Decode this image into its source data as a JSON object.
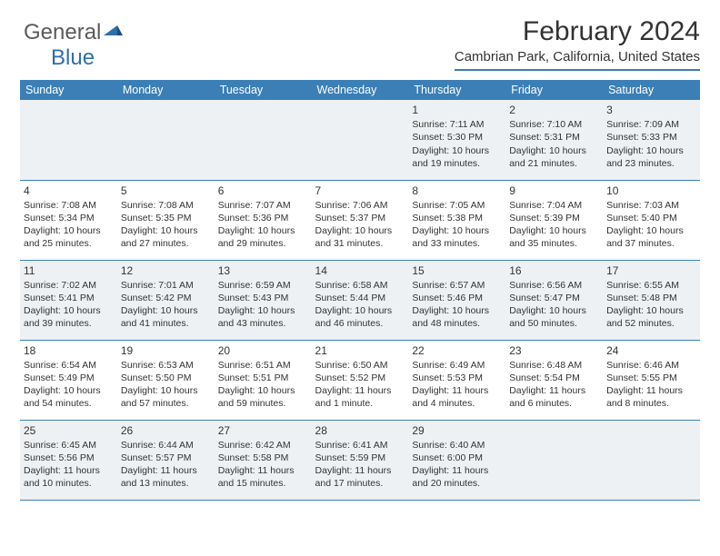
{
  "logo": {
    "word1": "General",
    "word2": "Blue"
  },
  "title": "February 2024",
  "location": "Cambrian Park, California, United States",
  "colors": {
    "accent": "#3b7fb6",
    "header_bg": "#3b7fb6",
    "header_text": "#ffffff",
    "shade_bg": "#eef1f3",
    "text": "#333333"
  },
  "weekdays": [
    "Sunday",
    "Monday",
    "Tuesday",
    "Wednesday",
    "Thursday",
    "Friday",
    "Saturday"
  ],
  "weeks": [
    [
      {
        "day": "",
        "lines": []
      },
      {
        "day": "",
        "lines": []
      },
      {
        "day": "",
        "lines": []
      },
      {
        "day": "",
        "lines": []
      },
      {
        "day": "1",
        "lines": [
          "Sunrise: 7:11 AM",
          "Sunset: 5:30 PM",
          "Daylight: 10 hours and 19 minutes."
        ]
      },
      {
        "day": "2",
        "lines": [
          "Sunrise: 7:10 AM",
          "Sunset: 5:31 PM",
          "Daylight: 10 hours and 21 minutes."
        ]
      },
      {
        "day": "3",
        "lines": [
          "Sunrise: 7:09 AM",
          "Sunset: 5:33 PM",
          "Daylight: 10 hours and 23 minutes."
        ]
      }
    ],
    [
      {
        "day": "4",
        "lines": [
          "Sunrise: 7:08 AM",
          "Sunset: 5:34 PM",
          "Daylight: 10 hours and 25 minutes."
        ]
      },
      {
        "day": "5",
        "lines": [
          "Sunrise: 7:08 AM",
          "Sunset: 5:35 PM",
          "Daylight: 10 hours and 27 minutes."
        ]
      },
      {
        "day": "6",
        "lines": [
          "Sunrise: 7:07 AM",
          "Sunset: 5:36 PM",
          "Daylight: 10 hours and 29 minutes."
        ]
      },
      {
        "day": "7",
        "lines": [
          "Sunrise: 7:06 AM",
          "Sunset: 5:37 PM",
          "Daylight: 10 hours and 31 minutes."
        ]
      },
      {
        "day": "8",
        "lines": [
          "Sunrise: 7:05 AM",
          "Sunset: 5:38 PM",
          "Daylight: 10 hours and 33 minutes."
        ]
      },
      {
        "day": "9",
        "lines": [
          "Sunrise: 7:04 AM",
          "Sunset: 5:39 PM",
          "Daylight: 10 hours and 35 minutes."
        ]
      },
      {
        "day": "10",
        "lines": [
          "Sunrise: 7:03 AM",
          "Sunset: 5:40 PM",
          "Daylight: 10 hours and 37 minutes."
        ]
      }
    ],
    [
      {
        "day": "11",
        "lines": [
          "Sunrise: 7:02 AM",
          "Sunset: 5:41 PM",
          "Daylight: 10 hours and 39 minutes."
        ]
      },
      {
        "day": "12",
        "lines": [
          "Sunrise: 7:01 AM",
          "Sunset: 5:42 PM",
          "Daylight: 10 hours and 41 minutes."
        ]
      },
      {
        "day": "13",
        "lines": [
          "Sunrise: 6:59 AM",
          "Sunset: 5:43 PM",
          "Daylight: 10 hours and 43 minutes."
        ]
      },
      {
        "day": "14",
        "lines": [
          "Sunrise: 6:58 AM",
          "Sunset: 5:44 PM",
          "Daylight: 10 hours and 46 minutes."
        ]
      },
      {
        "day": "15",
        "lines": [
          "Sunrise: 6:57 AM",
          "Sunset: 5:46 PM",
          "Daylight: 10 hours and 48 minutes."
        ]
      },
      {
        "day": "16",
        "lines": [
          "Sunrise: 6:56 AM",
          "Sunset: 5:47 PM",
          "Daylight: 10 hours and 50 minutes."
        ]
      },
      {
        "day": "17",
        "lines": [
          "Sunrise: 6:55 AM",
          "Sunset: 5:48 PM",
          "Daylight: 10 hours and 52 minutes."
        ]
      }
    ],
    [
      {
        "day": "18",
        "lines": [
          "Sunrise: 6:54 AM",
          "Sunset: 5:49 PM",
          "Daylight: 10 hours and 54 minutes."
        ]
      },
      {
        "day": "19",
        "lines": [
          "Sunrise: 6:53 AM",
          "Sunset: 5:50 PM",
          "Daylight: 10 hours and 57 minutes."
        ]
      },
      {
        "day": "20",
        "lines": [
          "Sunrise: 6:51 AM",
          "Sunset: 5:51 PM",
          "Daylight: 10 hours and 59 minutes."
        ]
      },
      {
        "day": "21",
        "lines": [
          "Sunrise: 6:50 AM",
          "Sunset: 5:52 PM",
          "Daylight: 11 hours and 1 minute."
        ]
      },
      {
        "day": "22",
        "lines": [
          "Sunrise: 6:49 AM",
          "Sunset: 5:53 PM",
          "Daylight: 11 hours and 4 minutes."
        ]
      },
      {
        "day": "23",
        "lines": [
          "Sunrise: 6:48 AM",
          "Sunset: 5:54 PM",
          "Daylight: 11 hours and 6 minutes."
        ]
      },
      {
        "day": "24",
        "lines": [
          "Sunrise: 6:46 AM",
          "Sunset: 5:55 PM",
          "Daylight: 11 hours and 8 minutes."
        ]
      }
    ],
    [
      {
        "day": "25",
        "lines": [
          "Sunrise: 6:45 AM",
          "Sunset: 5:56 PM",
          "Daylight: 11 hours and 10 minutes."
        ]
      },
      {
        "day": "26",
        "lines": [
          "Sunrise: 6:44 AM",
          "Sunset: 5:57 PM",
          "Daylight: 11 hours and 13 minutes."
        ]
      },
      {
        "day": "27",
        "lines": [
          "Sunrise: 6:42 AM",
          "Sunset: 5:58 PM",
          "Daylight: 11 hours and 15 minutes."
        ]
      },
      {
        "day": "28",
        "lines": [
          "Sunrise: 6:41 AM",
          "Sunset: 5:59 PM",
          "Daylight: 11 hours and 17 minutes."
        ]
      },
      {
        "day": "29",
        "lines": [
          "Sunrise: 6:40 AM",
          "Sunset: 6:00 PM",
          "Daylight: 11 hours and 20 minutes."
        ]
      },
      {
        "day": "",
        "lines": []
      },
      {
        "day": "",
        "lines": []
      }
    ]
  ]
}
